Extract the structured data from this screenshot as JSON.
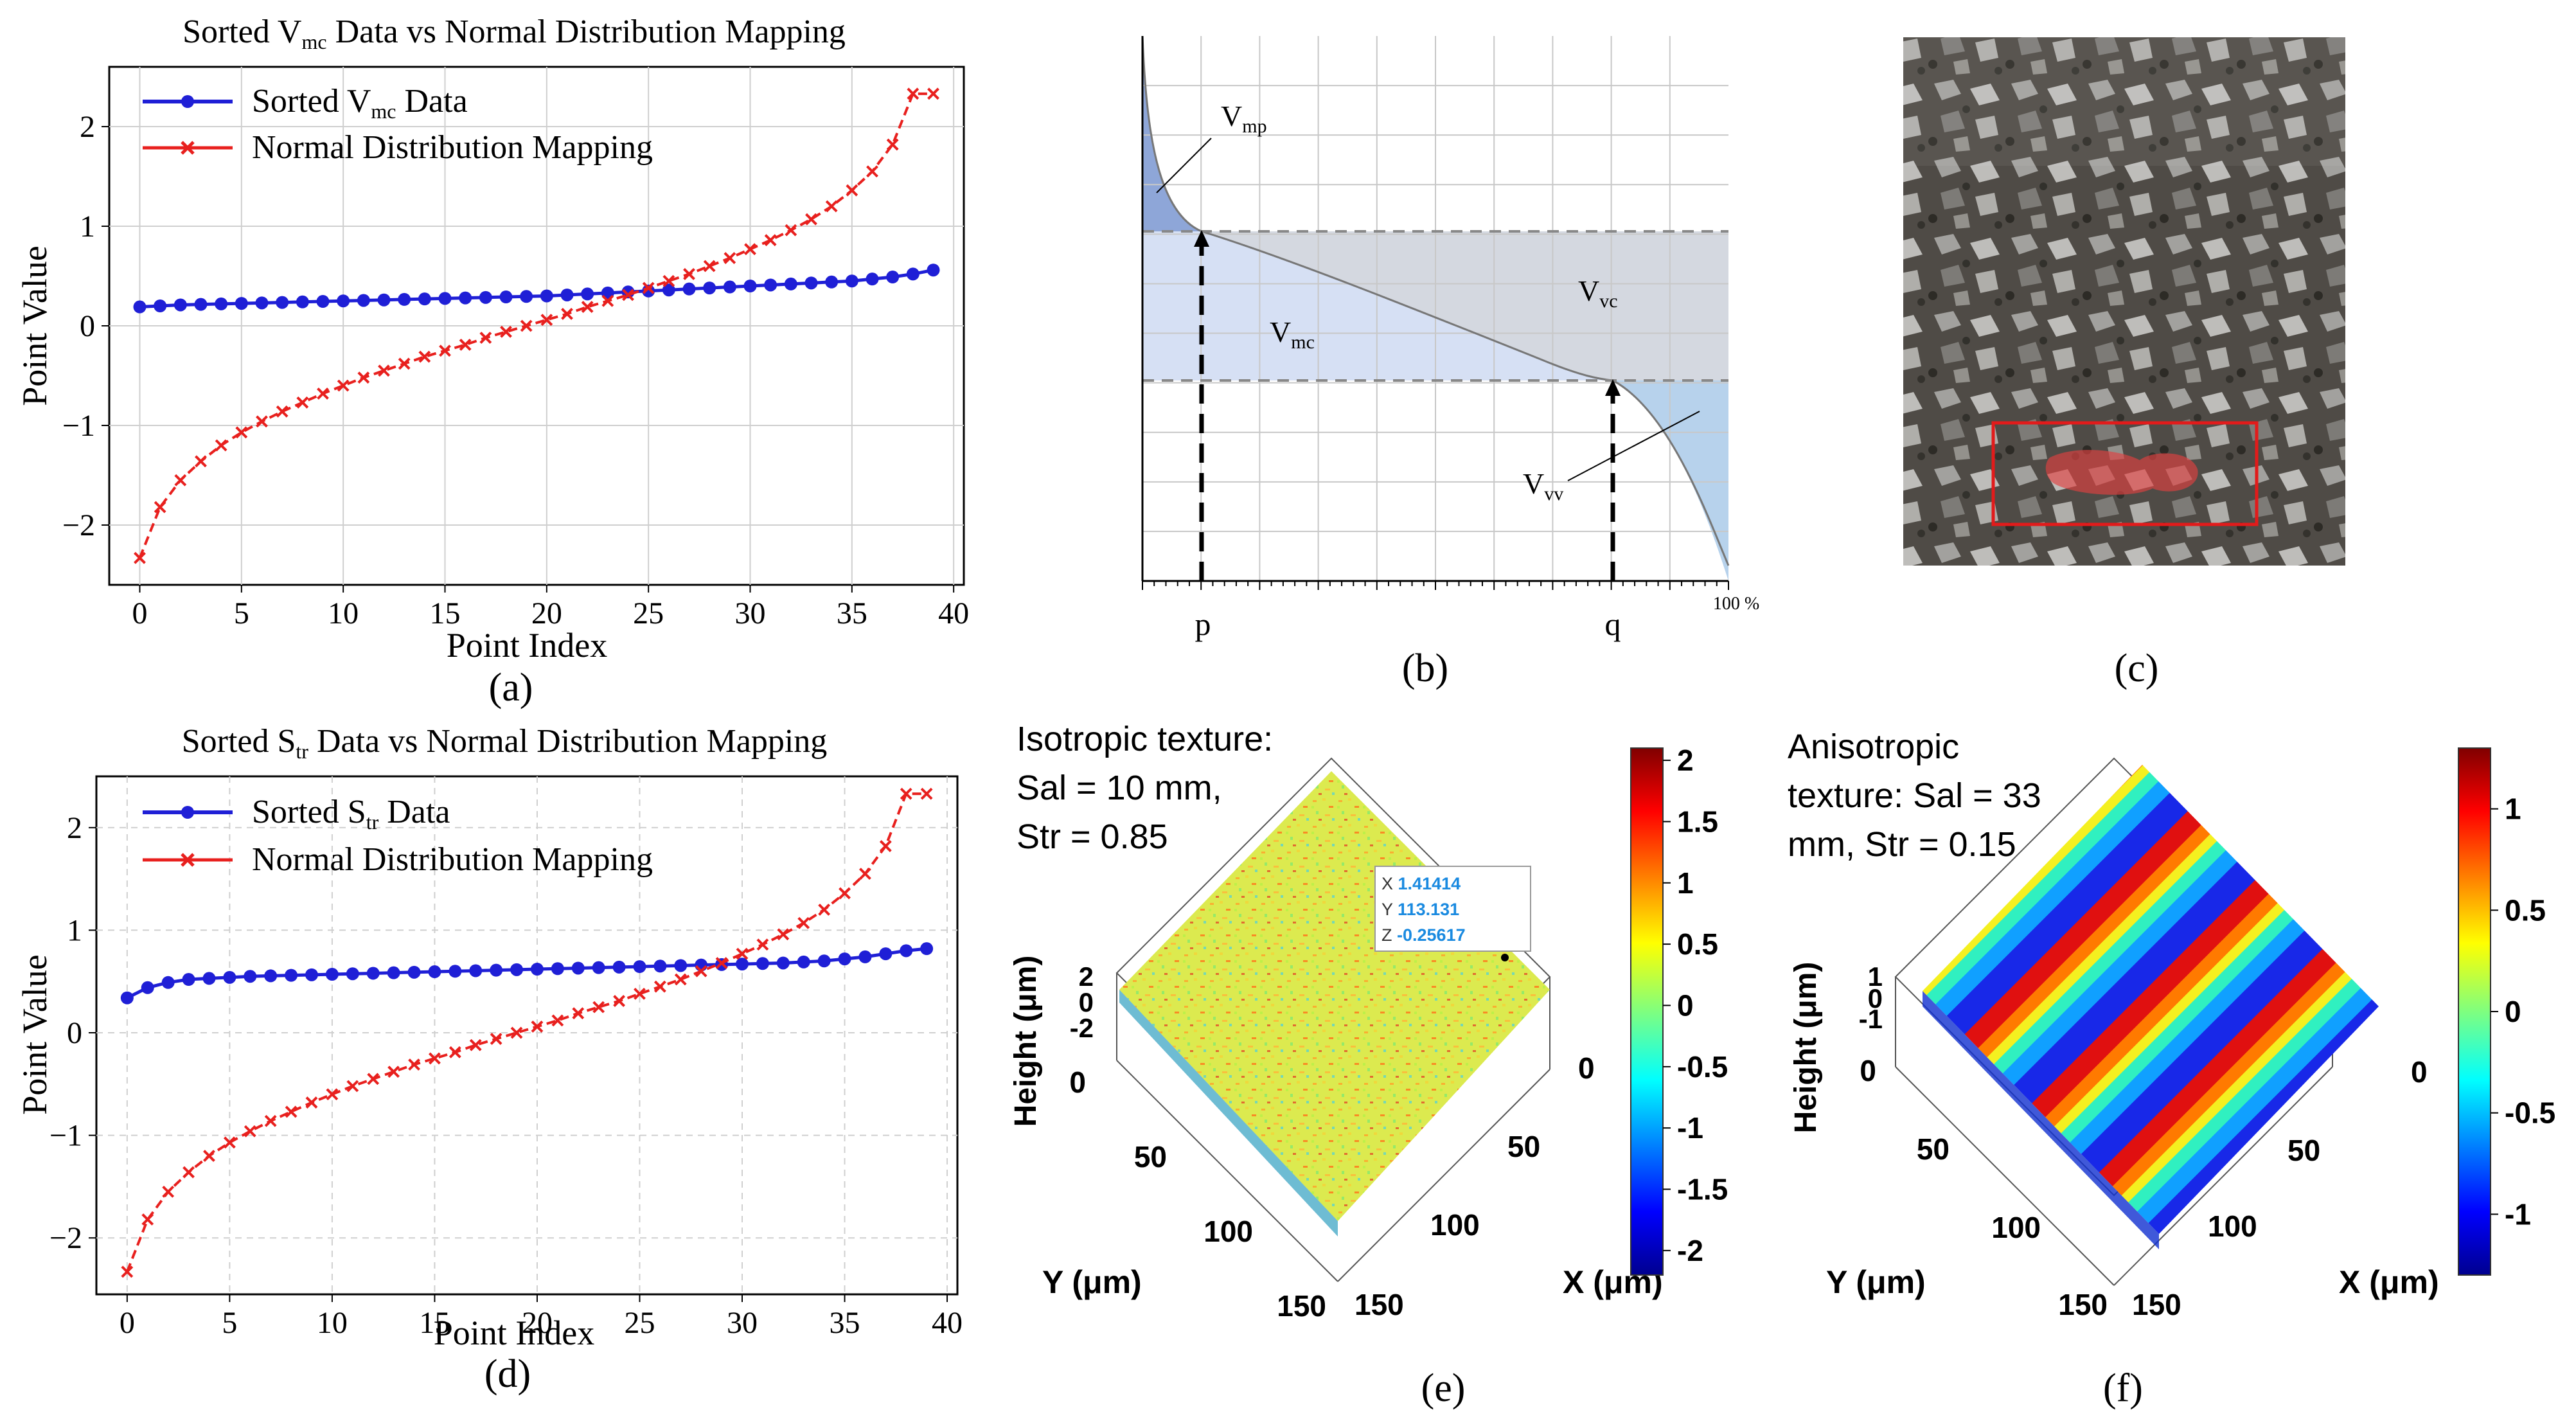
{
  "panels": {
    "a": {
      "label": "(a)"
    },
    "b": {
      "label": "(b)"
    },
    "c": {
      "label": "(c)"
    },
    "d": {
      "label": "(d)"
    },
    "e": {
      "label": "(e)"
    },
    "f": {
      "label": "(f)"
    }
  },
  "chart_data": [
    {
      "id": "a",
      "type": "line",
      "title": "Sorted V",
      "title_sub": "mc",
      "title_rest": " Data vs Normal Distribution Mapping",
      "xlabel": "Point Index",
      "ylabel": "Point Value",
      "xlim": [
        -1.5,
        40.5
      ],
      "ylim": [
        -2.6,
        2.6
      ],
      "xticks": [
        0,
        5,
        10,
        15,
        20,
        25,
        30,
        35,
        40
      ],
      "yticks": [
        -2,
        -1,
        0,
        1,
        2
      ],
      "grid": "solid",
      "legend": "top-left",
      "series": [
        {
          "name": "Sorted V",
          "name_sub": "mc",
          "name_rest": " Data",
          "color": "#1f1fd6",
          "marker": "dot",
          "style": "solid",
          "x": [
            0,
            1,
            2,
            3,
            4,
            5,
            6,
            7,
            8,
            9,
            10,
            11,
            12,
            13,
            14,
            15,
            16,
            17,
            18,
            19,
            20,
            21,
            22,
            23,
            24,
            25,
            26,
            27,
            28,
            29,
            30,
            31,
            32,
            33,
            34,
            35,
            36,
            37,
            38,
            39
          ],
          "y": [
            0.19,
            0.2,
            0.21,
            0.215,
            0.22,
            0.225,
            0.23,
            0.235,
            0.24,
            0.245,
            0.25,
            0.255,
            0.26,
            0.265,
            0.27,
            0.275,
            0.28,
            0.285,
            0.29,
            0.295,
            0.3,
            0.31,
            0.32,
            0.33,
            0.34,
            0.35,
            0.36,
            0.37,
            0.38,
            0.39,
            0.4,
            0.41,
            0.42,
            0.43,
            0.44,
            0.45,
            0.47,
            0.49,
            0.52,
            0.56
          ]
        },
        {
          "name": "Normal Distribution Mapping",
          "color": "#e8201e",
          "marker": "x",
          "style": "dashed",
          "x": [
            0,
            1,
            2,
            3,
            4,
            5,
            6,
            7,
            8,
            9,
            10,
            11,
            12,
            13,
            14,
            15,
            16,
            17,
            18,
            19,
            20,
            21,
            22,
            23,
            24,
            25,
            26,
            27,
            28,
            29,
            30,
            31,
            32,
            33,
            34,
            35,
            36,
            37,
            38,
            39
          ],
          "y": [
            -2.33,
            -1.82,
            -1.55,
            -1.36,
            -1.2,
            -1.07,
            -0.96,
            -0.86,
            -0.77,
            -0.68,
            -0.6,
            -0.52,
            -0.45,
            -0.38,
            -0.31,
            -0.25,
            -0.19,
            -0.12,
            -0.06,
            0.0,
            0.06,
            0.12,
            0.19,
            0.25,
            0.31,
            0.38,
            0.45,
            0.52,
            0.6,
            0.68,
            0.77,
            0.86,
            0.96,
            1.07,
            1.2,
            1.36,
            1.55,
            1.82,
            2.33,
            2.33
          ]
        }
      ]
    },
    {
      "id": "d",
      "type": "line",
      "title": "Sorted S",
      "title_sub": "tr",
      "title_rest": " Data vs Normal Distribution Mapping",
      "xlabel": "Point Index",
      "ylabel": "Point Value",
      "xlim": [
        -1.5,
        40.5
      ],
      "ylim": [
        -2.55,
        2.5
      ],
      "xticks": [
        0,
        5,
        10,
        15,
        20,
        25,
        30,
        35,
        40
      ],
      "yticks": [
        -2,
        -1,
        0,
        1,
        2
      ],
      "grid": "dashed",
      "legend": "top-left",
      "series": [
        {
          "name": "Sorted S",
          "name_sub": "tr",
          "name_rest": " Data",
          "color": "#1f1fd6",
          "marker": "dot",
          "style": "solid",
          "x": [
            0,
            1,
            2,
            3,
            4,
            5,
            6,
            7,
            8,
            9,
            10,
            11,
            12,
            13,
            14,
            15,
            16,
            17,
            18,
            19,
            20,
            21,
            22,
            23,
            24,
            25,
            26,
            27,
            28,
            29,
            30,
            31,
            32,
            33,
            34,
            35,
            36,
            37,
            38,
            39
          ],
          "y": [
            0.34,
            0.44,
            0.49,
            0.52,
            0.53,
            0.54,
            0.55,
            0.555,
            0.56,
            0.565,
            0.57,
            0.575,
            0.58,
            0.585,
            0.59,
            0.595,
            0.6,
            0.605,
            0.61,
            0.615,
            0.62,
            0.625,
            0.63,
            0.635,
            0.64,
            0.645,
            0.65,
            0.655,
            0.66,
            0.665,
            0.67,
            0.675,
            0.68,
            0.69,
            0.7,
            0.72,
            0.74,
            0.77,
            0.8,
            0.82
          ]
        },
        {
          "name": "Normal Distribution Mapping",
          "color": "#e8201e",
          "marker": "x",
          "style": "dashed",
          "x": [
            0,
            1,
            2,
            3,
            4,
            5,
            6,
            7,
            8,
            9,
            10,
            11,
            12,
            13,
            14,
            15,
            16,
            17,
            18,
            19,
            20,
            21,
            22,
            23,
            24,
            25,
            26,
            27,
            28,
            29,
            30,
            31,
            32,
            33,
            34,
            35,
            36,
            37,
            38,
            39
          ],
          "y": [
            -2.33,
            -1.82,
            -1.55,
            -1.36,
            -1.2,
            -1.07,
            -0.96,
            -0.86,
            -0.77,
            -0.68,
            -0.6,
            -0.52,
            -0.45,
            -0.38,
            -0.31,
            -0.25,
            -0.19,
            -0.12,
            -0.06,
            0.0,
            0.06,
            0.12,
            0.19,
            0.25,
            0.31,
            0.38,
            0.45,
            0.52,
            0.6,
            0.68,
            0.77,
            0.86,
            0.96,
            1.07,
            1.2,
            1.36,
            1.55,
            1.82,
            2.33,
            2.33
          ]
        }
      ]
    },
    {
      "id": "e",
      "type": "heatmap",
      "title_lines": [
        "Isotropic texture:",
        "Sal = 10 mm,",
        "Str = 0.85"
      ],
      "zlabel": "Height (μm)",
      "xlabel": "X (μm)",
      "ylabel": "Y (μm)",
      "zticks": [
        "2",
        "0",
        "-2"
      ],
      "xticks": [
        "0",
        "50",
        "100",
        "150"
      ],
      "yticks": [
        "0",
        "50",
        "100",
        "150"
      ],
      "colorbar_ticks": [
        "2",
        "1.5",
        "1",
        "0.5",
        "0",
        "-0.5",
        "-1",
        "-1.5",
        "-2"
      ],
      "colorbar_range": [
        -2.2,
        2.1
      ],
      "datatip": {
        "x": "1.41414",
        "y": "113.131",
        "z": "-0.25617",
        "x_key": "X",
        "y_key": "Y",
        "z_key": "Z"
      }
    },
    {
      "id": "f",
      "type": "heatmap",
      "title_lines": [
        "Anisotropic",
        "texture: Sal = 33",
        "mm, Str = 0.15"
      ],
      "zlabel": "Height (μm)",
      "xlabel": "X (μm)",
      "ylabel": "Y (μm)",
      "zticks": [
        "1",
        "0",
        "-1"
      ],
      "xticks": [
        "0",
        "50",
        "100",
        "150"
      ],
      "yticks": [
        "0",
        "50",
        "100",
        "150"
      ],
      "colorbar_ticks": [
        "1",
        "0.5",
        "0",
        "-0.5",
        "-1"
      ],
      "colorbar_range": [
        -1.3,
        1.3
      ]
    }
  ],
  "diagram_b": {
    "labels": {
      "vmp": "V",
      "vmp_sub": "mp",
      "vmc": "V",
      "vmc_sub": "mc",
      "vvc": "V",
      "vvc_sub": "vc",
      "vvv": "V",
      "vvv_sub": "vv"
    },
    "axis": {
      "p": "p",
      "q": "q",
      "end": "100 %"
    }
  },
  "photo_c": {
    "description_hidden": ""
  }
}
